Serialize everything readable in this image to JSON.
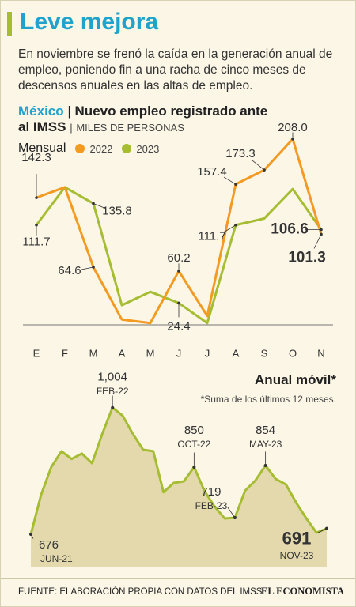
{
  "header": {
    "title": "Leve mejora",
    "subtitle": "En noviembre se frenó la caída en la generación anual de empleo, poniendo fin a una racha de cinco meses de descensos anuales en las altas de empleo."
  },
  "chart_data": [
    {
      "type": "line",
      "title": "México",
      "subtitle": "Nuevo empleo registrado ante al IMSS",
      "unit": "MILES DE PERSONAS",
      "legend_title": "Mensual",
      "categories": [
        "E",
        "F",
        "M",
        "A",
        "M",
        "J",
        "J",
        "A",
        "S",
        "O",
        "N"
      ],
      "series": [
        {
          "name": "2022",
          "color": "#f39a22",
          "values": [
            142.3,
            154,
            64.6,
            6,
            2,
            60.2,
            10,
            157.4,
            173.3,
            208.0,
            101.3
          ],
          "value_labels": [
            "142.3",
            null,
            "64.6",
            null,
            null,
            "60.2",
            null,
            "157.4",
            "173.3",
            "208.0",
            "101.3"
          ]
        },
        {
          "name": "2023",
          "color": "#a6bd33",
          "values": [
            111.7,
            154,
            135.8,
            22,
            37,
            24.4,
            2,
            111.7,
            119,
            152,
            106.6
          ],
          "value_labels": [
            "111.7",
            null,
            "135.8",
            null,
            null,
            "24.4",
            null,
            "111.7",
            null,
            null,
            "106.6"
          ]
        }
      ],
      "ylim": [
        0,
        230
      ]
    },
    {
      "type": "area",
      "title": "Anual móvil*",
      "note": "*Suma de los últimos 12 meses.",
      "color": "#a6bd33",
      "fill": "#e3d9ad",
      "categories": [
        "JUN-21",
        null,
        null,
        null,
        null,
        null,
        null,
        null,
        "FEB-22",
        null,
        null,
        null,
        null,
        null,
        null,
        null,
        "OCT-22",
        null,
        null,
        null,
        "FEB-23",
        null,
        null,
        "MAY-23",
        null,
        null,
        null,
        null,
        null,
        "NOV-23"
      ],
      "values": [
        676,
        778,
        850,
        891,
        871,
        885,
        860,
        936,
        1004,
        983,
        936,
        895,
        891,
        785,
        809,
        813,
        850,
        789,
        748,
        717,
        719,
        789,
        815,
        854,
        819,
        805,
        758,
        717,
        680,
        691
      ],
      "value_labels": [
        "676",
        null,
        null,
        null,
        null,
        null,
        null,
        null,
        "1,004",
        null,
        null,
        null,
        null,
        null,
        null,
        null,
        "850",
        null,
        null,
        null,
        "719",
        null,
        null,
        "854",
        null,
        null,
        null,
        null,
        null,
        "691"
      ],
      "ylim": [
        590,
        1030
      ]
    }
  ],
  "footer": {
    "source": "FUENTE: ELABORACIÓN PROPIA CON DATOS DEL IMSS",
    "brand": "EL ECONOMISTA"
  }
}
